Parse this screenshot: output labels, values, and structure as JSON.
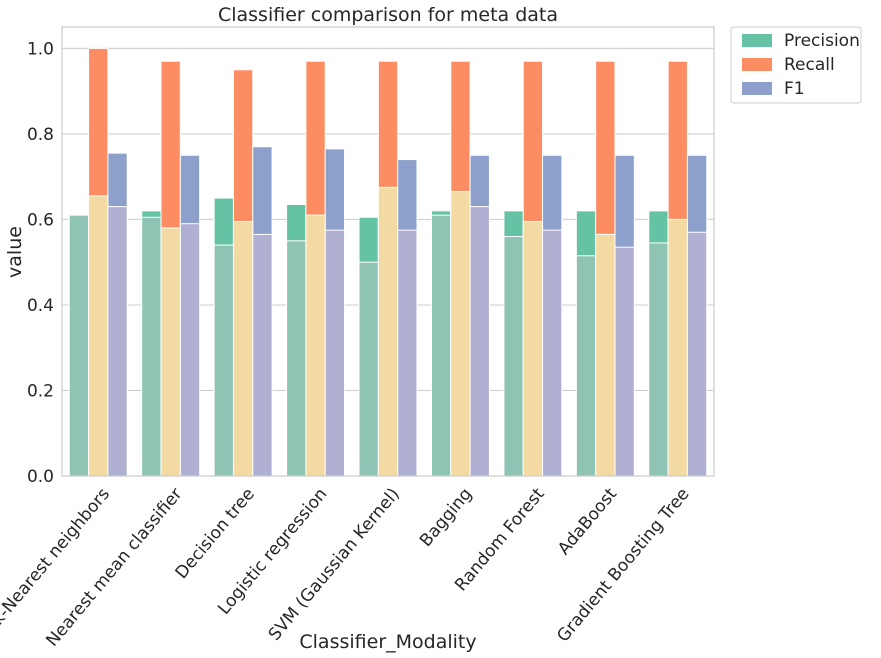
{
  "chart_data": {
    "type": "bar",
    "title": "Classifier comparison for meta data",
    "xlabel": "Classifier_Modality",
    "ylabel": "value",
    "ylim": [
      0,
      1.05
    ],
    "yticks": [
      "0.0",
      "0.2",
      "0.4",
      "0.6",
      "0.8",
      "1.0"
    ],
    "grid": "horizontal",
    "legend_position": "outside-top-right",
    "categories": [
      "k-Nearest neighbors",
      "Nearest mean classifier",
      "Decision tree",
      "Logistic regression",
      "SVM (Gaussian Kernel)",
      "Bagging",
      "Random Forest",
      "AdaBoost",
      "Gradient Boosting Tree"
    ],
    "series": [
      {
        "name": "Precision",
        "color": "#66c2a5",
        "values": [
          0.61,
          0.62,
          0.65,
          0.635,
          0.605,
          0.62,
          0.62,
          0.62,
          0.62
        ]
      },
      {
        "name": "Recall",
        "color": "#fc8d62",
        "values": [
          1.0,
          0.97,
          0.95,
          0.97,
          0.97,
          0.97,
          0.97,
          0.97,
          0.97
        ]
      },
      {
        "name": "F1",
        "color": "#8da0cb",
        "values": [
          0.755,
          0.75,
          0.77,
          0.765,
          0.74,
          0.75,
          0.75,
          0.75,
          0.75
        ]
      }
    ],
    "overlay_series": [
      {
        "color": "#8fc4b5",
        "values": [
          0.61,
          0.605,
          0.54,
          0.55,
          0.5,
          0.61,
          0.56,
          0.515,
          0.545
        ]
      },
      {
        "color": "#f3d9a2",
        "values": [
          0.655,
          0.58,
          0.595,
          0.61,
          0.675,
          0.665,
          0.595,
          0.565,
          0.6
        ]
      },
      {
        "color": "#b0b0d3",
        "values": [
          0.63,
          0.59,
          0.565,
          0.575,
          0.575,
          0.63,
          0.575,
          0.535,
          0.57
        ]
      }
    ]
  }
}
